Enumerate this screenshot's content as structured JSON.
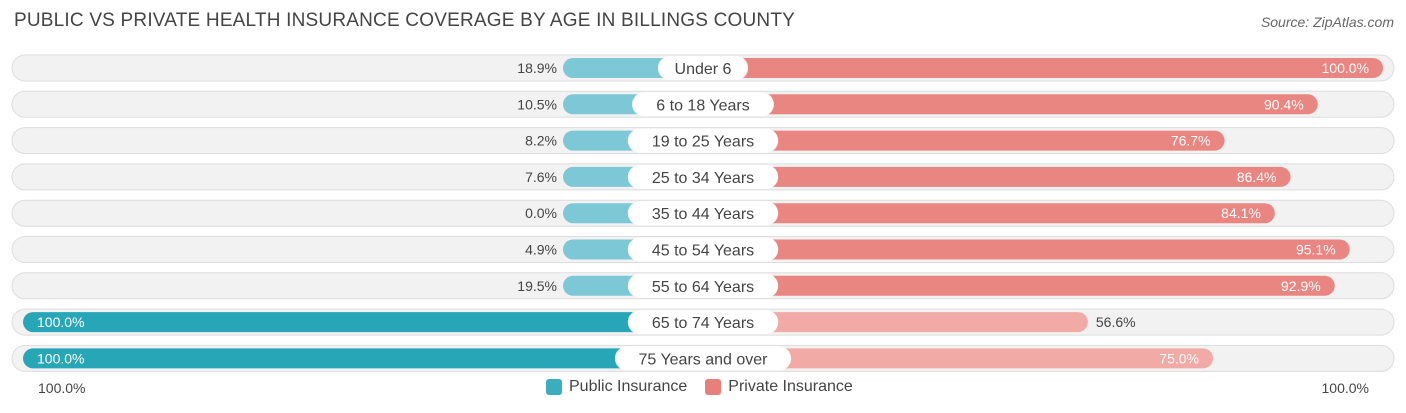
{
  "header": {
    "title": "PUBLIC VS PRIVATE HEALTH INSURANCE COVERAGE BY AGE IN BILLINGS COUNTY",
    "source": "Source: ZipAtlas.com"
  },
  "colors": {
    "public": "#7cc8d6",
    "public_strong": "#27a6b7",
    "private": "#ea8681",
    "private_light": "#f2aaa6",
    "track": "#f2f2f2",
    "track_border": "#dddddd"
  },
  "axis": {
    "left_label": "100.0%",
    "right_label": "100.0%"
  },
  "legend": [
    {
      "label": "Public Insurance",
      "color": "#3aaebd"
    },
    {
      "label": "Private Insurance",
      "color": "#e77f7a"
    }
  ],
  "chart_data": {
    "type": "bar",
    "orientation": "horizontal-diverging",
    "title": "PUBLIC VS PRIVATE HEALTH INSURANCE COVERAGE BY AGE IN BILLINGS COUNTY",
    "categories": [
      "Under 6",
      "6 to 18 Years",
      "19 to 25 Years",
      "25 to 34 Years",
      "35 to 44 Years",
      "45 to 54 Years",
      "55 to 64 Years",
      "65 to 74 Years",
      "75 Years and over"
    ],
    "series": [
      {
        "name": "Public Insurance",
        "values": [
          18.9,
          10.5,
          8.2,
          7.6,
          0.0,
          4.9,
          19.5,
          100.0,
          100.0
        ],
        "labels": [
          "18.9%",
          "10.5%",
          "8.2%",
          "7.6%",
          "0.0%",
          "4.9%",
          "19.5%",
          "100.0%",
          "100.0%"
        ]
      },
      {
        "name": "Private Insurance",
        "values": [
          100.0,
          90.4,
          76.7,
          86.4,
          84.1,
          95.1,
          92.9,
          56.6,
          75.0
        ],
        "labels": [
          "100.0%",
          "90.4%",
          "76.7%",
          "86.4%",
          "84.1%",
          "95.1%",
          "92.9%",
          "56.6%",
          "75.0%"
        ]
      }
    ],
    "xlim": [
      0,
      100
    ],
    "axis_labels": [
      "100.0%",
      "100.0%"
    ],
    "legend_position": "bottom-center"
  }
}
